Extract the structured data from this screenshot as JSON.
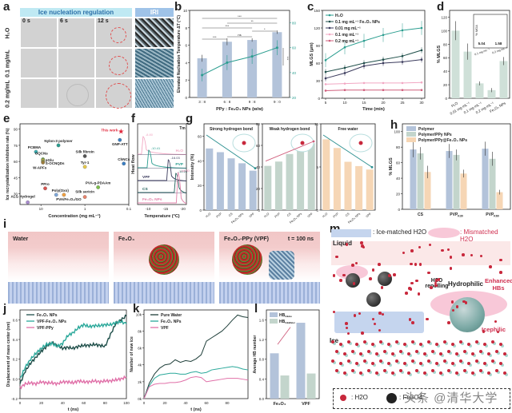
{
  "panel_labels": [
    "a",
    "b",
    "c",
    "d",
    "e",
    "f",
    "g",
    "h",
    "i",
    "j",
    "k",
    "l",
    "m"
  ],
  "panel_a": {
    "header_left": "Ice nucleation regulation",
    "header_right": "IRI",
    "time_labels": [
      "0 s",
      "6 s",
      "12 s"
    ],
    "row_labels": [
      "H2O",
      "0.1 mg/mL",
      "0.2 mg/mL"
    ],
    "colors": {
      "header_left": "#bfe9f3",
      "header_right": "#9fc3e8",
      "circle": "#e05050"
    }
  },
  "chart_data": [
    {
      "id": "b",
      "type": "bar",
      "categories": [
        "3 : 8",
        "6 : 8",
        "9 : 8",
        "9 : 0"
      ],
      "values": [
        4.5,
        6.4,
        6.6,
        7.5
      ],
      "errors": [
        0.4,
        0.4,
        0.2,
        0.2
      ],
      "line_series": {
        "name": "Size (μm)",
        "values": [
          38,
          48,
          53,
          60
        ],
        "errors": [
          5,
          6,
          6,
          6
        ],
        "ylim": [
          20,
          90
        ],
        "yticks": [
          20,
          40,
          60,
          80
        ]
      },
      "xlabel": "PPy : Fe3O4 NPs (w/w)",
      "ylabel": "Elevated Nucleation Temperature ΔT (°C)",
      "ylabel_right": "Size (μm)",
      "ylim": [
        0,
        10
      ],
      "yticks": [
        0,
        2,
        4,
        6,
        8,
        10
      ],
      "significance": [
        "***",
        "**",
        "***",
        "ns",
        "***",
        "ns",
        "*",
        "***"
      ],
      "colors": {
        "bar": "#b3c3da",
        "line": "#2a9d8f"
      }
    },
    {
      "id": "c",
      "type": "line",
      "x": [
        5,
        10,
        15,
        20,
        25,
        30
      ],
      "series": [
        {
          "name": "H2O",
          "values": [
            65,
            87,
            98,
            108,
            116,
            120
          ],
          "color": "#2a9d8f"
        },
        {
          "name": "0.1 mg mL-1 Fe3O4 NPs",
          "values": [
            45,
            52,
            60,
            66,
            72,
            82
          ],
          "color": "#1f4f4a"
        },
        {
          "name": "0.01 mg mL-1",
          "values": [
            34,
            43,
            55,
            60,
            62,
            66
          ],
          "color": "#3a3a5c"
        },
        {
          "name": "0.1 mg mL-1",
          "values": [
            24,
            25,
            26,
            26,
            26,
            27
          ],
          "color": "#f2a7c3"
        },
        {
          "name": "0.2 mg mL-1",
          "values": [
            13,
            14,
            14,
            14,
            14,
            14
          ],
          "color": "#d0607e"
        }
      ],
      "xlabel": "Time (min)",
      "ylabel": "MLGS (μm)",
      "ylim": [
        0,
        150
      ],
      "yticks": [
        0,
        30,
        60,
        90,
        120,
        150
      ],
      "xticks": [
        5,
        10,
        15,
        20,
        25,
        30
      ]
    },
    {
      "id": "d",
      "type": "bar",
      "categories": [
        "H2O",
        "0.01 mg mL-1",
        "0.1 mg mL-1",
        "0.2 mg mL-1",
        "Fe3O4 NPs"
      ],
      "values": [
        100,
        69,
        22,
        12,
        55
      ],
      "errors": [
        14,
        12,
        3,
        3,
        6
      ],
      "ylabel": "% MLGS",
      "ylim": [
        0,
        130
      ],
      "yticks": [
        0,
        20,
        40,
        60,
        80,
        100,
        120
      ],
      "inset": {
        "ylabel": "% MGA",
        "labels": [
          "5.04",
          "1.58"
        ],
        "categories": [
          "0.1 mg mL-1",
          "0.2 mg mL-1"
        ]
      },
      "colors": {
        "bar": "#cfe0d8"
      }
    },
    {
      "id": "e",
      "type": "scatter",
      "xlabel": "Concentration (mg mL-1)",
      "ylabel": "Ice recrystallization inhibition rate (%)",
      "xscale": "log-reversed",
      "xticks": [
        "10",
        "1",
        "0.1"
      ],
      "ylim": [
        20,
        95
      ],
      "yticks": [
        30,
        45,
        60,
        75,
        90
      ],
      "points": [
        {
          "label": "This work",
          "x": 0.15,
          "y": 88,
          "color": "#e0283c",
          "marker": "star"
        },
        {
          "label": "GNP-ATT",
          "x": 0.16,
          "y": 80,
          "color": "#3a7fc4"
        },
        {
          "label": "Nylon-3 polymer",
          "x": 4,
          "y": 75,
          "color": "#2a9d8f"
        },
        {
          "label": "PCBMA",
          "x": 13,
          "y": 69,
          "color": "#3bb1b5"
        },
        {
          "label": "OQCNs",
          "x": 9,
          "y": 62,
          "color": "#6aa84f"
        },
        {
          "label": "pGlu",
          "x": 9,
          "y": 61,
          "color": "#c9b03a"
        },
        {
          "label": "S-OCNQDs",
          "x": 9,
          "y": 60,
          "color": "#8aa24a"
        },
        {
          "label": "W-APFs",
          "x": 9,
          "y": 59,
          "color": "#9a7a3a"
        },
        {
          "label": "Silk fibroin",
          "x": 1,
          "y": 65,
          "color": "#555555"
        },
        {
          "label": "Tyr-1",
          "x": 1,
          "y": 55,
          "color": "#e6c84a"
        },
        {
          "label": "ChNCs",
          "x": 0.13,
          "y": 58,
          "color": "#3a7fc4"
        },
        {
          "label": "PPro",
          "x": 8,
          "y": 35,
          "color": "#d9534f"
        },
        {
          "label": "Poly(Oxo)",
          "x": 4.5,
          "y": 29,
          "color": "#7da7d9"
        },
        {
          "label": "PVA-g-PDAAm",
          "x": 0.5,
          "y": 36,
          "color": "#7cbf4a"
        },
        {
          "label": "Silk sericin",
          "x": 1,
          "y": 27,
          "color": "#e8836b"
        },
        {
          "label": "PVA/Fe3O4/GO",
          "x": 3,
          "y": 29,
          "color": "#f0a040"
        },
        {
          "label": "ALG Hydrogel",
          "x": 20,
          "y": 22,
          "color": "#a98bd0"
        }
      ]
    },
    {
      "id": "f",
      "type": "line",
      "xlabel": "Temperature (°C)",
      "ylabel": "Heat flow",
      "corner_label": "Tm",
      "xticks": [
        "-10",
        "-15",
        "-20"
      ],
      "series": [
        {
          "name": "H2O",
          "peak": -8.8,
          "peak_label": "-8.80",
          "color": "#f2a7c3"
        },
        {
          "name": "PVP",
          "peak": -10.41,
          "peak_label": "-10.41",
          "color": "#2a9d8f"
        },
        {
          "name": "VPF",
          "peak": -16.03,
          "peak_label": "-16.03",
          "color": "#3a3a5c"
        },
        {
          "name": "CS",
          "peak": -18.2,
          "peak_label": "-18.20",
          "color": "#1f5f5a"
        },
        {
          "name": "Fe3O4 NPs",
          "peak": -18.8,
          "peak_label": "-18.80",
          "color": "#e080a8"
        }
      ]
    },
    {
      "id": "g",
      "type": "bar",
      "ylabel": "Intensity (%)",
      "categories": [
        "H2O",
        "PVP",
        "CS",
        "Fe3O4 NPs",
        "VPF"
      ],
      "subplots": [
        {
          "title": "Strong hydrogen bond",
          "values": [
            50,
            47,
            42,
            38,
            32
          ],
          "ylim": [
            0,
            70
          ],
          "yticks": [
            0,
            20,
            40,
            60
          ],
          "color": "#b3c3da",
          "arrow": "down",
          "arrow_color": "#2a8f8f"
        },
        {
          "title": "Weak hydrogen bond",
          "values": [
            41,
            45,
            52,
            57,
            62
          ],
          "ylim": [
            0,
            80
          ],
          "yticks": [
            0,
            20,
            40,
            60,
            80
          ],
          "color": "#c3d5cc",
          "arrow": "up",
          "arrow_color": "#d0607e"
        },
        {
          "title": "Free water",
          "values": [
            8.2,
            7.2,
            5.6,
            5.1,
            4.7
          ],
          "ylim": [
            0,
            10
          ],
          "yticks": [
            0,
            5,
            10
          ],
          "color": "#f6d6b5",
          "arrow": "down",
          "arrow_color": "#2a8f8f"
        }
      ]
    },
    {
      "id": "h",
      "type": "bar",
      "categories": [
        "CS",
        "PVP K30",
        "PVP K60"
      ],
      "series": [
        {
          "name": "Polymer",
          "values": [
            77,
            75,
            78
          ],
          "errors": [
            10,
            9,
            9
          ],
          "color": "#b3c3da"
        },
        {
          "name": "Polymer/PPy NPs",
          "values": [
            72,
            70,
            65
          ],
          "errors": [
            8,
            7,
            9
          ],
          "color": "#c3d5cc"
        },
        {
          "name": "Polymer/PPy@Fe3O4 NPs",
          "values": [
            48,
            46,
            22
          ],
          "errors": [
            8,
            5,
            3
          ],
          "color": "#f6d6b5"
        }
      ],
      "ylabel": "% MLGS",
      "ylim": [
        0,
        110
      ],
      "yticks": [
        0,
        20,
        40,
        60,
        80,
        100
      ]
    },
    {
      "id": "j",
      "type": "line",
      "xlabel": "t (ns)",
      "ylabel": "Displacement of mass center (nm)",
      "xlim": [
        0,
        100
      ],
      "ylim": [
        -0.2,
        0.7
      ],
      "xticks": [
        0,
        20,
        40,
        60,
        80,
        100
      ],
      "yticks": [
        -0.2,
        0.0,
        0.2,
        0.4,
        0.6
      ],
      "x": [
        0,
        5,
        10,
        15,
        20,
        25,
        30,
        35,
        40,
        45,
        50,
        55,
        60,
        65,
        70,
        75,
        80,
        85,
        90,
        95,
        100
      ],
      "series": [
        {
          "name": "Fe3O4 NPs",
          "values": [
            -0.05,
            0.08,
            0.16,
            0.22,
            0.28,
            0.33,
            0.37,
            0.34,
            0.31,
            0.32,
            0.31,
            0.33,
            0.34,
            0.34,
            0.35,
            0.34,
            0.33,
            0.45,
            0.56,
            0.6,
            0.64
          ],
          "color": "#1f4f4a"
        },
        {
          "name": "VPF-Fe3O4 NPs",
          "values": [
            0.0,
            0.12,
            0.2,
            0.26,
            0.31,
            0.35,
            0.36,
            0.33,
            0.36,
            0.44,
            0.47,
            0.52,
            0.55,
            0.53,
            0.54,
            0.54,
            0.55,
            0.55,
            0.57,
            0.58,
            0.56
          ],
          "color": "#2aa89a"
        },
        {
          "name": "VPF-PPy",
          "values": [
            -0.09,
            -0.05,
            -0.04,
            -0.05,
            -0.03,
            -0.04,
            -0.04,
            -0.05,
            -0.03,
            -0.03,
            -0.04,
            -0.02,
            -0.03,
            -0.03,
            -0.02,
            -0.03,
            -0.02,
            -0.02,
            -0.01,
            0.0,
            0.02
          ],
          "color": "#e070a8"
        }
      ]
    },
    {
      "id": "k",
      "type": "line",
      "xlabel": "t (ns)",
      "ylabel": "Number of new ice",
      "xlim": [
        0,
        100
      ],
      "ylim": [
        0,
        10500
      ],
      "xticks": [
        0,
        20,
        40,
        60,
        80
      ],
      "yticks": [
        "0k",
        "2k",
        "4k",
        "6k",
        "8k",
        "10k"
      ],
      "x": [
        0,
        5,
        10,
        15,
        20,
        25,
        30,
        35,
        40,
        45,
        50,
        55,
        60,
        65,
        70,
        75,
        80,
        85,
        90,
        95,
        100
      ],
      "series": [
        {
          "name": "Pure Water",
          "values": [
            0,
            1800,
            2900,
            3600,
            4000,
            4100,
            4600,
            4300,
            4500,
            4400,
            4700,
            5200,
            6800,
            7200,
            7600,
            8000,
            8600,
            9300,
            9900,
            9700,
            9600
          ],
          "color": "#1f3f3a"
        },
        {
          "name": "Fe3O4 NPs",
          "values": [
            0,
            1500,
            2400,
            2800,
            2900,
            3000,
            3000,
            2900,
            2900,
            3100,
            3200,
            3000,
            3100,
            3400,
            3500,
            3600,
            3700,
            3800,
            3700,
            3500,
            3400
          ],
          "color": "#2aa89a"
        },
        {
          "name": "VPF",
          "values": [
            0,
            1400,
            1700,
            1800,
            1800,
            1900,
            1900,
            2000,
            2200,
            2500,
            2600,
            2500,
            2000,
            2100,
            2200,
            2300,
            2400,
            2400,
            2400,
            2300,
            2200
          ],
          "color": "#e070a8"
        }
      ]
    },
    {
      "id": "l",
      "type": "bar",
      "categories": [
        "Fe3O4",
        "VPF"
      ],
      "series": [
        {
          "name": "HB O&Ice",
          "values": [
            0.92,
            1.54
          ],
          "color": "#b3c3da"
        },
        {
          "name": "HB O&Water",
          "values": [
            0.47,
            0.51
          ],
          "color": "#c3d5cc"
        }
      ],
      "ylabel": "Average HB number",
      "ylim": [
        0,
        1.8
      ],
      "yticks": [
        0.0,
        0.4,
        0.8,
        1.2,
        1.6
      ]
    }
  ],
  "panel_i": {
    "frames": [
      {
        "label": "Water"
      },
      {
        "label": "Fe3O4"
      },
      {
        "label": "Fe3O4-PPy (VPF)",
        "time": "t = 100 ns"
      }
    ]
  },
  "panel_m": {
    "legend_ice_matched": ": Ice-matched H2O",
    "legend_mismatched": ": Mismatched H2O",
    "liquid_label": "Liquid",
    "ice_label": "Ice",
    "h2o_repelling": "H2O repelling",
    "hydrophilic": "Hydrophilic",
    "enhanced_hbs": "Enhanced HBs",
    "icephilic": "Icephilic",
    "bottom_legend_h2o": ": H2O",
    "bottom_legend_fe": ": Fe3O4",
    "watermark": "头条 @清华大学"
  }
}
